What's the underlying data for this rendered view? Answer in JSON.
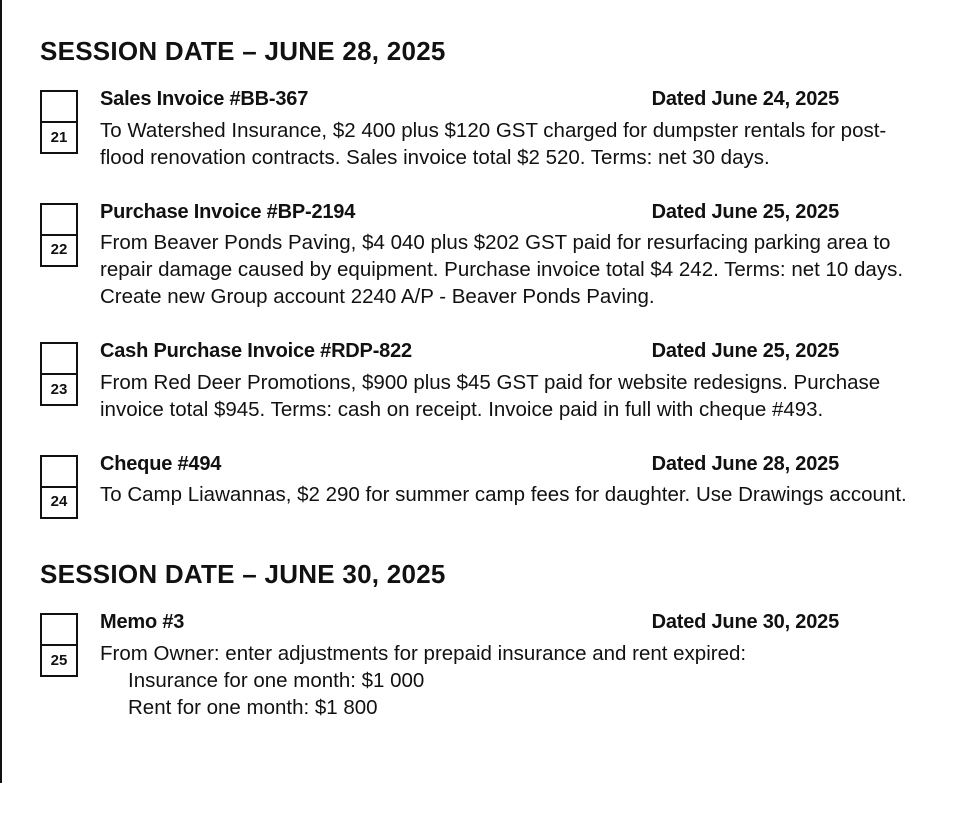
{
  "sessions": [
    {
      "heading": "SESSION DATE – JUNE 28, 2025",
      "entries": [
        {
          "num": "21",
          "title": "Sales Invoice #BB-367",
          "dated": "Dated June 24, 2025",
          "desc": "To Watershed Insurance, $2 400 plus $120 GST charged for dumpster rentals for post-flood renovation contracts. Sales invoice total $2 520. Terms: net 30 days."
        },
        {
          "num": "22",
          "title": "Purchase Invoice #BP-2194",
          "dated": "Dated June 25, 2025",
          "desc": "From Beaver Ponds Paving, $4 040 plus $202 GST paid for resurfacing parking area to repair damage caused by equipment. Purchase invoice total $4 242. Terms: net 10 days. Create new Group account 2240 A/P - Beaver Ponds Paving."
        },
        {
          "num": "23",
          "title": "Cash Purchase Invoice #RDP-822",
          "dated": "Dated June 25, 2025",
          "desc": "From Red Deer Promotions, $900 plus $45 GST paid for website redesigns. Purchase invoice total $945. Terms: cash on receipt. Invoice paid in full with cheque #493."
        },
        {
          "num": "24",
          "title": "Cheque #494",
          "dated": "Dated June 28, 2025",
          "desc": "To Camp Liawannas, $2 290 for summer camp fees for daughter. Use Drawings account."
        }
      ]
    },
    {
      "heading": "SESSION DATE – JUNE 30, 2025",
      "entries": [
        {
          "num": "25",
          "title": "Memo #3",
          "dated": "Dated June 30, 2025",
          "desc": "From Owner: enter adjustments for prepaid insurance and rent expired:",
          "lines": [
            "Insurance for one month: $1 000",
            "Rent for one month: $1 800"
          ]
        }
      ]
    }
  ]
}
